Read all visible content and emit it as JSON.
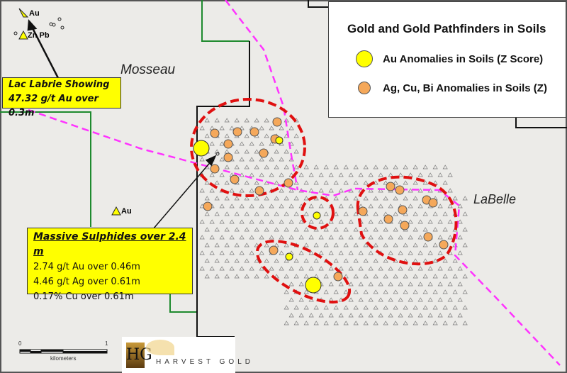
{
  "legend": {
    "title": "Gold and Gold Pathfinders in Soils",
    "items": [
      {
        "label": "Au Anomalies in Soils (Z Score)",
        "color": "#ffff00"
      },
      {
        "label": "Ag, Cu, Bi Anomalies in Soils (Z)",
        "color": "#f5a85a"
      }
    ]
  },
  "place_labels": {
    "mosseau": "Mosseau",
    "labelle": "LaBelle"
  },
  "occurrences": {
    "au_top": "Au",
    "zn_pb": "Zn Pb",
    "au_mid": "Au"
  },
  "callout_lac_labrie": {
    "line1": "Lac Labrie Showing",
    "line2": "47.32 g/t Au over 0.3m"
  },
  "callout_sulphides": {
    "title": "Massive Sulphides over 2.4 m",
    "lines": [
      "2.74 g/t Au over 0.46m",
      "4.46 g/t Ag over 0.61m",
      "0.17% Cu over 0.61m"
    ]
  },
  "scale_bar": {
    "start": "0",
    "end": "1",
    "unit": "kilometers"
  },
  "logo": {
    "text": "HARVEST GOLD",
    "monogram": "HG"
  },
  "colors": {
    "claim_boundary": "#1e8a2e",
    "property_boundary": "#111111",
    "road": "#ff33ff",
    "anomaly_outline": "#e01010",
    "au": "#ffff00",
    "pathfinder": "#f5a85a"
  }
}
